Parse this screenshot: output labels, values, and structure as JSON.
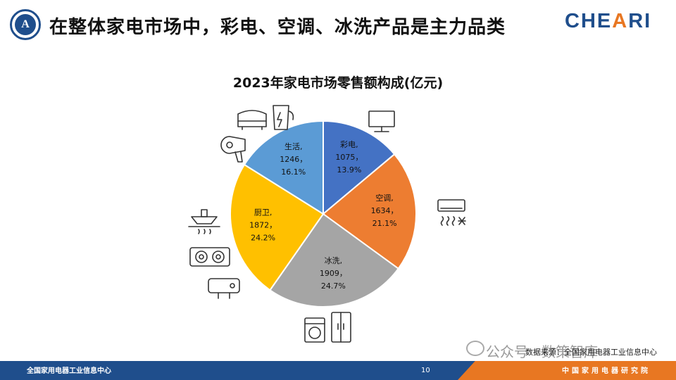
{
  "header": {
    "title": "在整体家电市场中，彩电、空调、冰洗产品是主力品类",
    "logo_left_text": "A",
    "logo_right_text_1": "CHE",
    "logo_right_text_2": "A",
    "logo_right_text_3": "RI"
  },
  "chart_data": {
    "type": "pie",
    "title": "2023年家电市场零售额构成(亿元)",
    "slices": [
      {
        "label": "彩电,",
        "value": 1075,
        "value_text": "1075，",
        "percent": "13.9%",
        "color": "#4472c4"
      },
      {
        "label": "空调,",
        "value": 1634,
        "value_text": "1634，",
        "percent": "21.1%",
        "color": "#ed7d31"
      },
      {
        "label": "冰洗,",
        "value": 1909,
        "value_text": "1909，",
        "percent": "24.7%",
        "color": "#a5a5a5"
      },
      {
        "label": "厨卫,",
        "value": 1872,
        "value_text": "1872，",
        "percent": "24.2%",
        "color": "#ffc000"
      },
      {
        "label": "生活,",
        "value": 1246,
        "value_text": "1246，",
        "percent": "16.1%",
        "color": "#5b9bd5"
      }
    ]
  },
  "icons": [
    "tv-icon",
    "air-conditioner-icon",
    "washing-machine-icon",
    "refrigerator-icon",
    "range-hood-icon",
    "gas-stove-icon",
    "water-heater-icon",
    "rice-cooker-icon",
    "kettle-icon",
    "hair-dryer-icon"
  ],
  "source_text": "数据来源：全国家用电器工业信息中心",
  "watermark_text": "公众号 · 数策智库",
  "footer": {
    "left": "全国家用电器工业信息中心",
    "page": "10",
    "right": "中国家用电器研究院"
  }
}
